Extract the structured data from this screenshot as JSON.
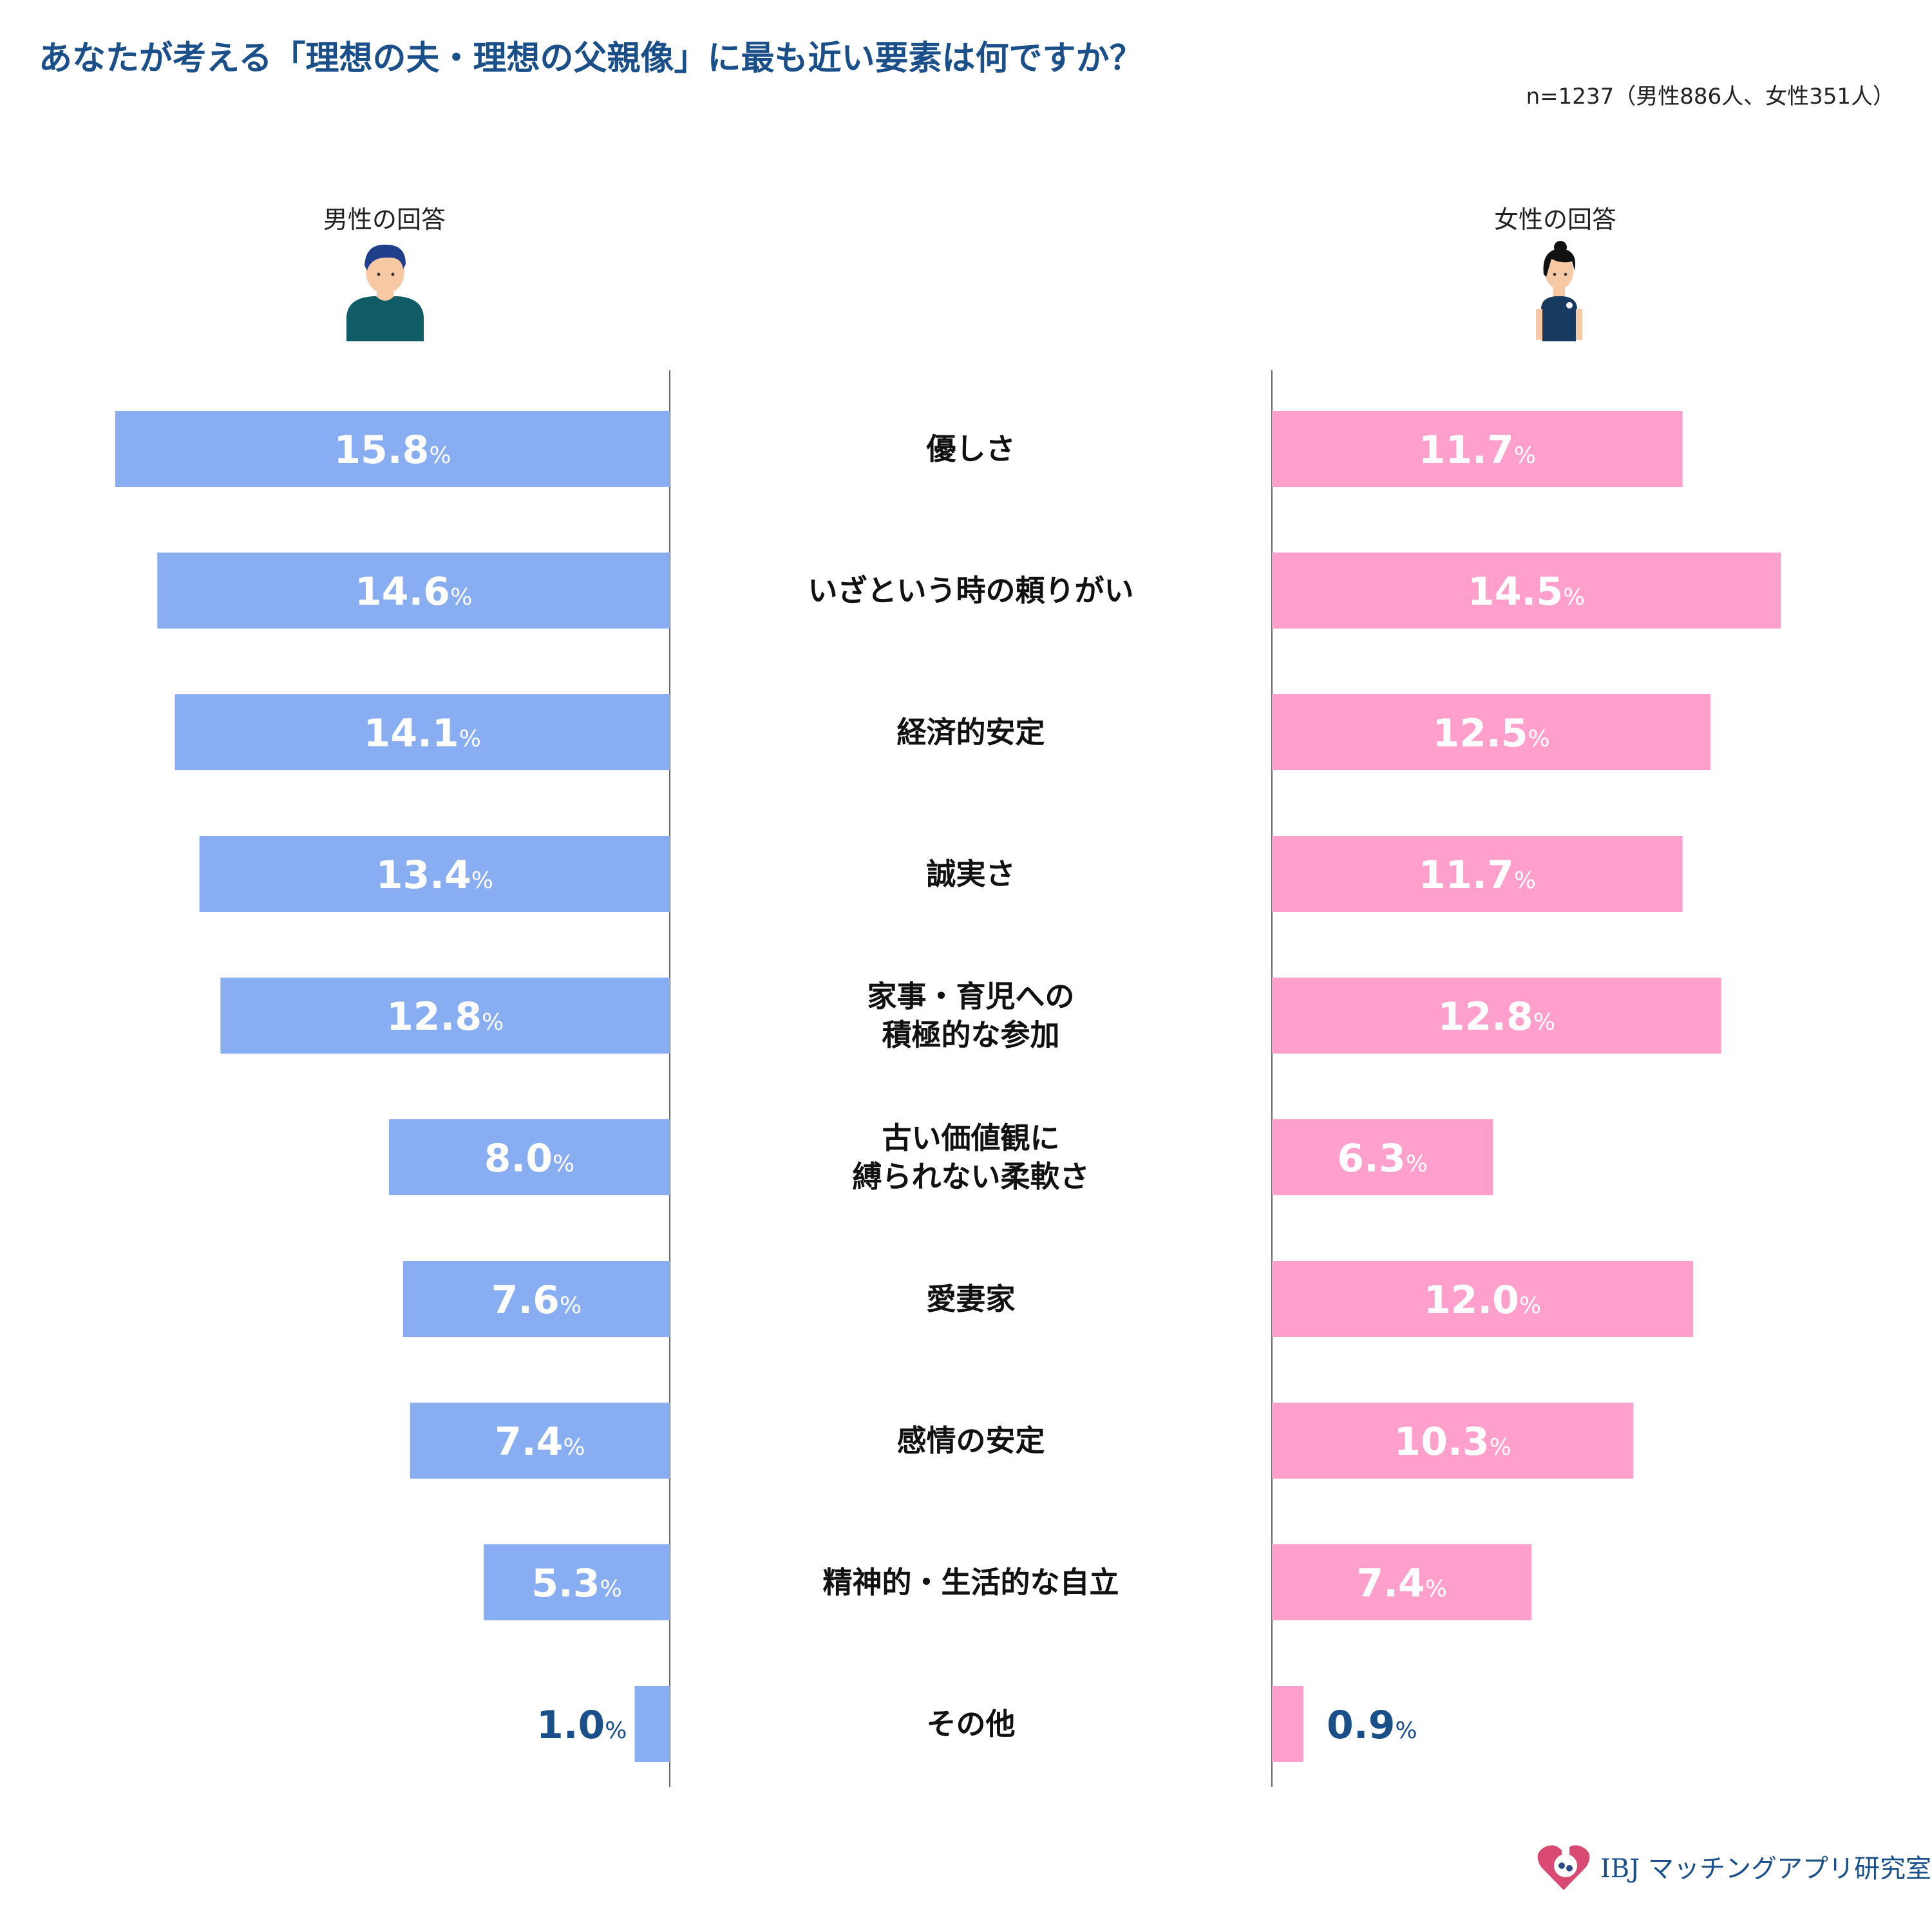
{
  "header": {
    "title": "あなたが考える「理想の夫・理想の父親像」に最も近い要素は何ですか？",
    "sample": "n=1237（男性886人、女性351人）"
  },
  "male": {
    "label": "男性の回答",
    "icon": "man-avatar-icon"
  },
  "female": {
    "label": "女性の回答",
    "icon": "woman-avatar-icon"
  },
  "logo": {
    "text": "IBJ マッチングアプリ研究室",
    "icon": "heart-flask-icon"
  },
  "colors": {
    "male_bar": "#88adf0",
    "female_bar": "#ff9fcb",
    "title": "#1b4f8a",
    "axis": "#666666"
  },
  "chart_data": {
    "type": "bar",
    "orientation": "horizontal-butterfly",
    "unit": "%",
    "categories": [
      "優しさ",
      "いざという時の頼りがい",
      "経済的安定",
      "誠実さ",
      "家事・育児への\n積極的な参加",
      "古い価値観に\n縛られない柔軟さ",
      "愛妻家",
      "感情の安定",
      "精神的・生活的な自立",
      "その他"
    ],
    "series": [
      {
        "name": "男性の回答",
        "values": [
          15.8,
          14.6,
          14.1,
          13.4,
          12.8,
          8.0,
          7.6,
          7.4,
          5.3,
          1.0
        ]
      },
      {
        "name": "女性の回答",
        "values": [
          11.7,
          14.5,
          12.5,
          11.7,
          12.8,
          6.3,
          12.0,
          10.3,
          7.4,
          0.9
        ]
      }
    ],
    "value_labels": {
      "male": [
        "15.8",
        "14.6",
        "14.1",
        "13.4",
        "12.8",
        "8.0",
        "7.6",
        "7.4",
        "5.3",
        "1.0"
      ],
      "female": [
        "11.7",
        "14.5",
        "12.5",
        "11.7",
        "12.8",
        "6.3",
        "12.0",
        "10.3",
        "7.4",
        "0.9"
      ]
    },
    "grid": false,
    "legend": "top"
  }
}
